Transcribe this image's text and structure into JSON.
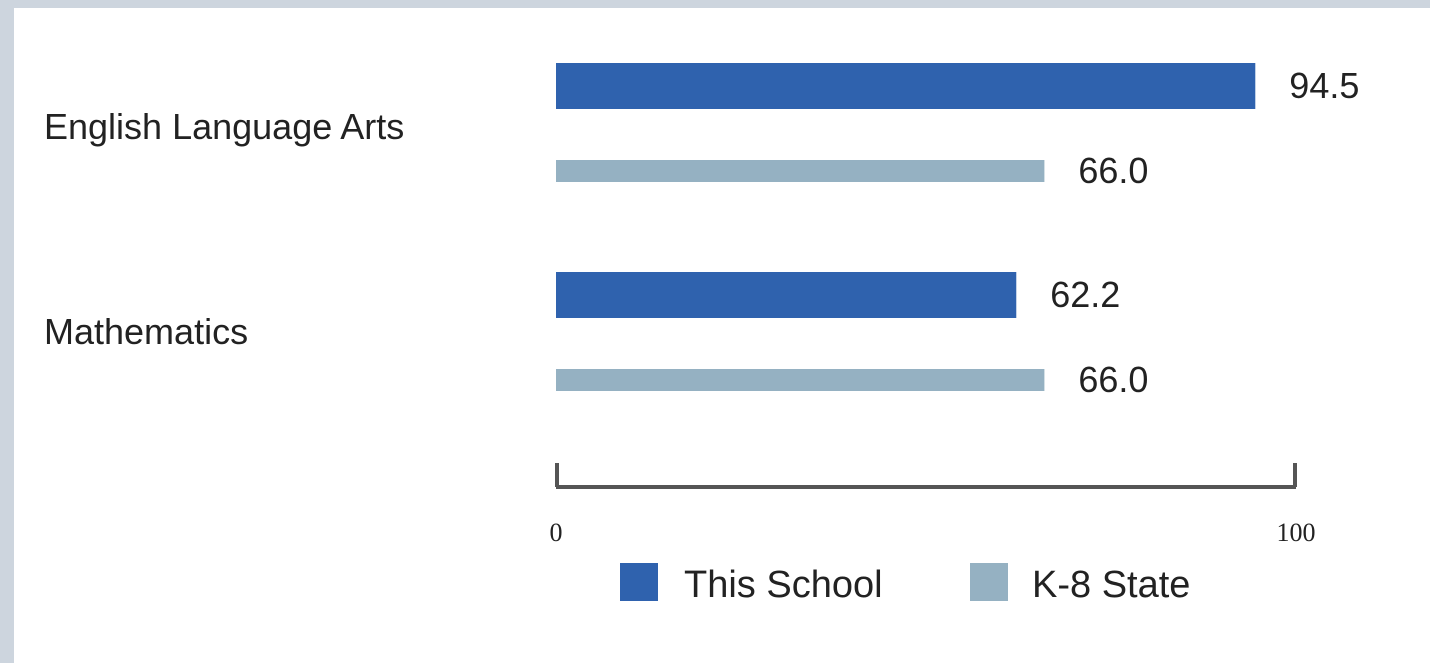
{
  "chart_data": {
    "type": "bar",
    "orientation": "horizontal",
    "categories": [
      "English Language Arts",
      "Mathematics"
    ],
    "series": [
      {
        "name": "This School",
        "values": [
          94.5,
          62.2
        ],
        "color": "#2f62ae"
      },
      {
        "name": "K-8 State",
        "values": [
          66.0,
          66.0
        ],
        "color": "#95b1c2"
      }
    ],
    "value_labels": [
      [
        "94.5",
        "62.2"
      ],
      [
        "66.0",
        "66.0"
      ]
    ],
    "xlim": [
      0,
      100
    ],
    "ticks": [
      "0",
      "100"
    ],
    "grid": false,
    "legend_position": "bottom"
  }
}
